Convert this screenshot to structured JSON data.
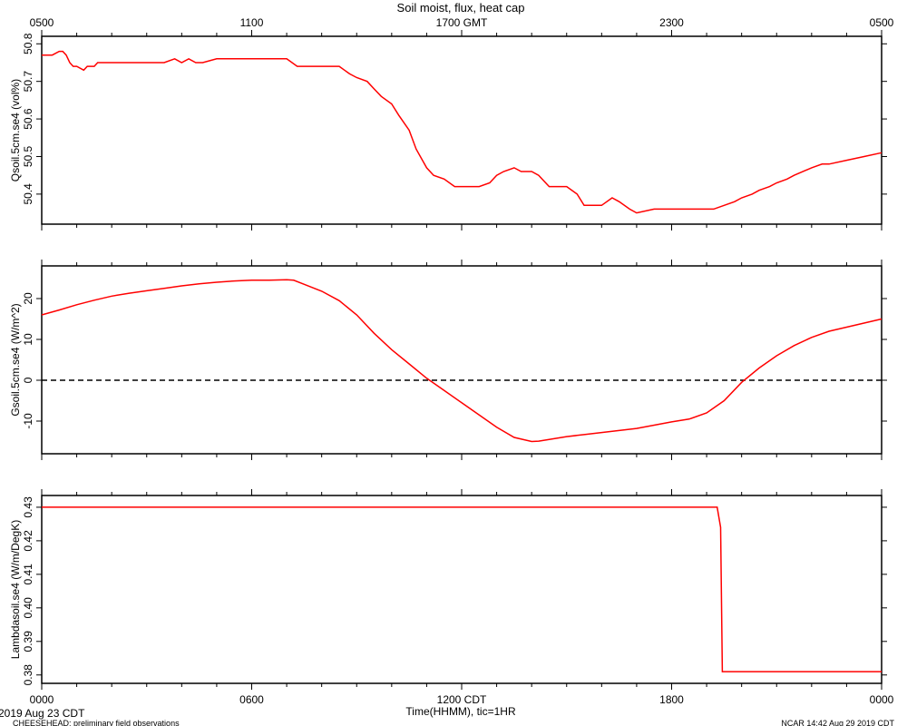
{
  "title": "Soil moist, flux, heat cap",
  "top_axis": {
    "ticks": [
      {
        "hour": 0,
        "label": "0500"
      },
      {
        "hour": 6,
        "label": "1100"
      },
      {
        "hour": 12,
        "label": "1700 GMT"
      },
      {
        "hour": 18,
        "label": "2300"
      },
      {
        "hour": 24,
        "label": "0500"
      }
    ]
  },
  "bottom_axis": {
    "ticks": [
      {
        "hour": 0,
        "label": "0000"
      },
      {
        "hour": 6,
        "label": "0600"
      },
      {
        "hour": 12,
        "label": "1200 CDT"
      },
      {
        "hour": 18,
        "label": "1800"
      },
      {
        "hour": 24,
        "label": "0000"
      }
    ],
    "label": "Time(HHMM), tic=1HR"
  },
  "footer": {
    "date": "2019 Aug 23 CDT",
    "project": "CHEESEHEAD: preliminary field observations",
    "credit": "NCAR 14:42 Aug 29 2019 CDT"
  },
  "colors": {
    "series": "#ff0000",
    "axis": "#000000",
    "zero_line": "#000000"
  },
  "chart_data": [
    {
      "type": "line",
      "ylabel": "Qsoil.5cm.se4 (vol%)",
      "ylim": [
        50.32,
        50.82
      ],
      "yticks": [
        50.4,
        50.5,
        50.6,
        50.7,
        50.8
      ],
      "ytick_labels": [
        "50.4",
        "50.5",
        "50.6",
        "50.7",
        "50.8"
      ],
      "xlim": [
        0,
        24
      ],
      "x_unit": "hours since 0000 CDT",
      "series": [
        {
          "x": [
            0,
            0.3,
            0.5,
            0.6,
            0.7,
            0.8,
            0.9,
            1.0,
            1.2,
            1.3,
            1.4,
            1.5,
            1.6,
            1.8,
            2.0,
            2.5,
            3.0,
            3.3,
            3.5,
            3.8,
            4.0,
            4.2,
            4.4,
            4.6,
            5.0,
            5.3,
            5.5,
            6.0,
            6.5,
            7.0,
            7.3,
            7.5,
            7.8,
            8.0,
            8.5,
            8.8,
            9.0,
            9.3,
            9.5,
            9.7,
            10.0,
            10.2,
            10.5,
            10.7,
            11.0,
            11.2,
            11.5,
            11.8,
            12.0,
            12.3,
            12.5,
            12.8,
            13.0,
            13.2,
            13.5,
            13.7,
            14.0,
            14.2,
            14.5,
            15.0,
            15.3,
            15.5,
            15.8,
            16.0,
            16.3,
            16.5,
            16.8,
            17.0,
            17.5,
            18.0,
            18.5,
            19.0,
            19.2,
            19.5,
            19.8,
            20.0,
            20.3,
            20.5,
            20.8,
            21.0,
            21.3,
            21.5,
            22.0,
            22.3,
            22.5,
            23.0,
            23.5,
            24.0
          ],
          "y": [
            50.77,
            50.77,
            50.78,
            50.78,
            50.77,
            50.75,
            50.74,
            50.74,
            50.73,
            50.74,
            50.74,
            50.74,
            50.75,
            50.75,
            50.75,
            50.75,
            50.75,
            50.75,
            50.75,
            50.76,
            50.75,
            50.76,
            50.75,
            50.75,
            50.76,
            50.76,
            50.76,
            50.76,
            50.76,
            50.76,
            50.74,
            50.74,
            50.74,
            50.74,
            50.74,
            50.72,
            50.71,
            50.7,
            50.68,
            50.66,
            50.64,
            50.61,
            50.57,
            50.52,
            50.47,
            50.45,
            50.44,
            50.42,
            50.42,
            50.42,
            50.42,
            50.43,
            50.45,
            50.46,
            50.47,
            50.46,
            50.46,
            50.45,
            50.42,
            50.42,
            50.4,
            50.37,
            50.37,
            50.37,
            50.39,
            50.38,
            50.36,
            50.35,
            50.36,
            50.36,
            50.36,
            50.36,
            50.36,
            50.37,
            50.38,
            50.39,
            50.4,
            50.41,
            50.42,
            50.43,
            50.44,
            50.45,
            50.47,
            50.48,
            50.48,
            50.49,
            50.5,
            50.51
          ]
        }
      ]
    },
    {
      "type": "line",
      "ylabel": "Gsoil.5cm.se4 (W/m^2)",
      "ylim": [
        -18,
        28
      ],
      "yticks": [
        -10,
        0,
        10,
        20
      ],
      "ytick_labels": [
        "-10",
        "0",
        "10",
        "20"
      ],
      "reference_line": {
        "y": 0,
        "style": "dashed"
      },
      "xlim": [
        0,
        24
      ],
      "x_unit": "hours since 0000 CDT",
      "series": [
        {
          "x": [
            0,
            0.5,
            1.0,
            1.5,
            2.0,
            2.5,
            3.0,
            3.5,
            4.0,
            4.5,
            5.0,
            5.5,
            6.0,
            6.5,
            7.0,
            7.2,
            7.5,
            8.0,
            8.5,
            9.0,
            9.5,
            10.0,
            10.5,
            11.0,
            11.5,
            12.0,
            12.5,
            13.0,
            13.5,
            14.0,
            14.2,
            14.5,
            15.0,
            15.5,
            16.0,
            16.5,
            17.0,
            17.5,
            18.0,
            18.5,
            19.0,
            19.5,
            20.0,
            20.5,
            21.0,
            21.5,
            22.0,
            22.5,
            23.0,
            23.5,
            24.0
          ],
          "y": [
            16,
            17.2,
            18.5,
            19.6,
            20.6,
            21.3,
            21.9,
            22.5,
            23.1,
            23.6,
            24.0,
            24.3,
            24.5,
            24.5,
            24.6,
            24.5,
            23.5,
            21.8,
            19.5,
            16.0,
            11.5,
            7.5,
            4.0,
            0.5,
            -2.5,
            -5.5,
            -8.5,
            -11.5,
            -14.0,
            -15.0,
            -14.9,
            -14.5,
            -13.8,
            -13.3,
            -12.8,
            -12.3,
            -11.8,
            -11.0,
            -10.2,
            -9.5,
            -8.0,
            -5.0,
            -0.5,
            3.0,
            6.0,
            8.5,
            10.5,
            12.0,
            13.0,
            14.0,
            15.0
          ]
        }
      ]
    },
    {
      "type": "line",
      "ylabel": "Lambdasoil.se4 (W/m/DegK)",
      "ylim": [
        0.3775,
        0.4335
      ],
      "yticks": [
        0.38,
        0.39,
        0.4,
        0.41,
        0.42,
        0.43
      ],
      "ytick_labels": [
        "0.38",
        "0.39",
        "0.40",
        "0.41",
        "0.42",
        "0.43"
      ],
      "xlim": [
        0,
        24
      ],
      "x_unit": "hours since 0000 CDT",
      "series": [
        {
          "x": [
            0,
            19.3,
            19.4,
            19.45,
            24.0
          ],
          "y": [
            0.43,
            0.43,
            0.424,
            0.381,
            0.381
          ]
        }
      ]
    }
  ]
}
